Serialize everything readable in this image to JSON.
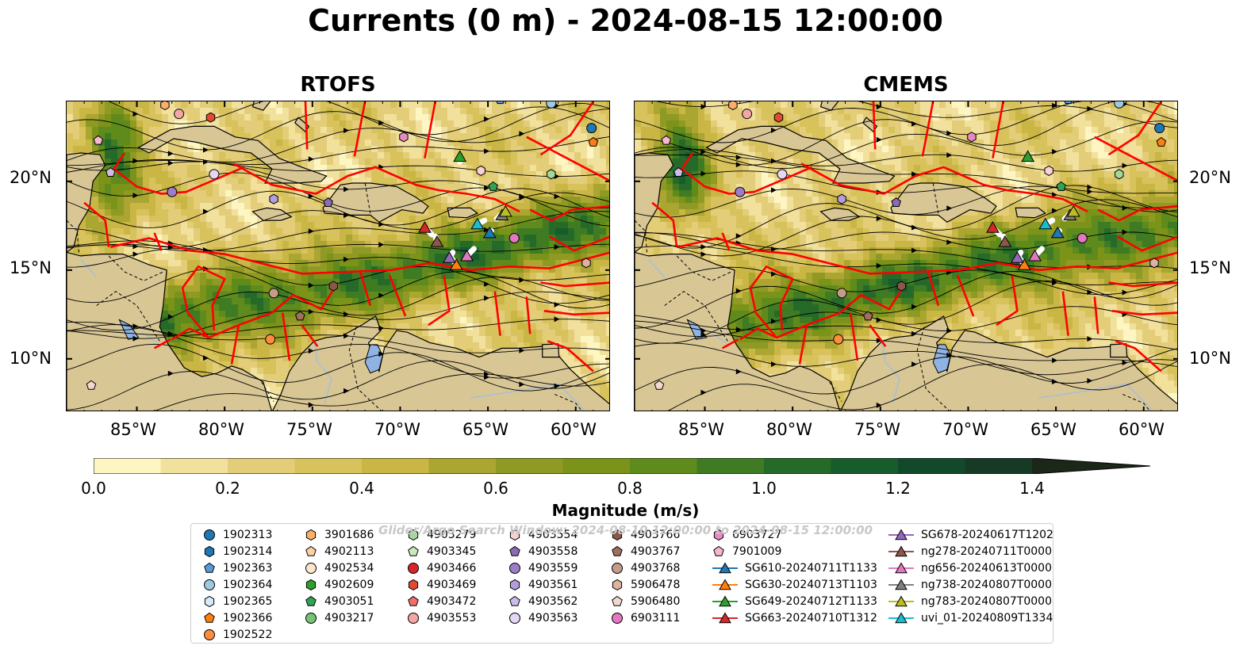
{
  "title": "Currents (0 m) - 2024-08-15 12:00:00",
  "panels": [
    {
      "title": "RTOFS"
    },
    {
      "title": "CMEMS"
    }
  ],
  "map": {
    "lon_ticks": [
      "85°W",
      "80°W",
      "75°W",
      "70°W",
      "65°W",
      "60°W"
    ],
    "lat_ticks": [
      "20°N",
      "15°N",
      "10°N"
    ],
    "lon_range": [
      -89,
      -58
    ],
    "lat_range": [
      7,
      24.5
    ]
  },
  "colorbar": {
    "label": "Magnitude (m/s)",
    "ticks": [
      "0.0",
      "0.2",
      "0.4",
      "0.6",
      "0.8",
      "1.0",
      "1.2",
      "1.4"
    ],
    "range": [
      0,
      1.5
    ],
    "colors": [
      "#fdf6c3",
      "#f1e19c",
      "#e3cd78",
      "#d8c25c",
      "#c9b645",
      "#aaa631",
      "#8f9a24",
      "#7b9319",
      "#5f8b1d",
      "#3f7b23",
      "#256a29",
      "#175c2b",
      "#13492b",
      "#163a26",
      "#17301f",
      "#1b2718"
    ]
  },
  "watermark": "Glider/Argo Search Window: 2024-08-10 12:00:00 to 2024-08-15 12:00:00",
  "legend": {
    "columns": [
      [
        {
          "label": "1902313",
          "marker": "circle",
          "color": "#1f77b4"
        },
        {
          "label": "1902314",
          "marker": "hexagon",
          "color": "#1f77b4"
        },
        {
          "label": "1902363",
          "marker": "pentagon",
          "color": "#5b9bd5"
        },
        {
          "label": "1902364",
          "marker": "circle",
          "color": "#9ecae1"
        },
        {
          "label": "1902365",
          "marker": "hexagon",
          "color": "#d6ecfa"
        },
        {
          "label": "1902366",
          "marker": "pentagon",
          "color": "#ff7f0e"
        },
        {
          "label": "1902522",
          "marker": "circle",
          "color": "#fd8d3c"
        }
      ],
      [
        {
          "label": "3901686",
          "marker": "hexagon",
          "color": "#fdae6b"
        },
        {
          "label": "4902113",
          "marker": "pentagon",
          "color": "#fdd0a2"
        },
        {
          "label": "4902534",
          "marker": "circle",
          "color": "#fee6ce"
        },
        {
          "label": "4902609",
          "marker": "hexagon",
          "color": "#2ca02c"
        },
        {
          "label": "4903051",
          "marker": "pentagon",
          "color": "#31a354"
        },
        {
          "label": "4903217",
          "marker": "circle",
          "color": "#74c476"
        }
      ],
      [
        {
          "label": "4903279",
          "marker": "hexagon",
          "color": "#a1d99b"
        },
        {
          "label": "4903345",
          "marker": "pentagon",
          "color": "#c7e9c0"
        },
        {
          "label": "4903466",
          "marker": "circle",
          "color": "#d62728"
        },
        {
          "label": "4903469",
          "marker": "hexagon",
          "color": "#e34a33"
        },
        {
          "label": "4903472",
          "marker": "pentagon",
          "color": "#f46d6d"
        },
        {
          "label": "4903553",
          "marker": "circle",
          "color": "#f4a6a6"
        }
      ],
      [
        {
          "label": "4903554",
          "marker": "hexagon",
          "color": "#fbd0d0"
        },
        {
          "label": "4903558",
          "marker": "pentagon",
          "color": "#8c6bb1"
        },
        {
          "label": "4903559",
          "marker": "circle",
          "color": "#9e7cc9"
        },
        {
          "label": "4903561",
          "marker": "hexagon",
          "color": "#b39ddb"
        },
        {
          "label": "4903562",
          "marker": "pentagon",
          "color": "#cdbbe8"
        },
        {
          "label": "4903563",
          "marker": "circle",
          "color": "#e3d7f5"
        }
      ],
      [
        {
          "label": "4903766",
          "marker": "hexagon",
          "color": "#8c564b"
        },
        {
          "label": "4903767",
          "marker": "pentagon",
          "color": "#a0705f"
        },
        {
          "label": "4903768",
          "marker": "circle",
          "color": "#c49c8a"
        },
        {
          "label": "5906478",
          "marker": "hexagon",
          "color": "#dbb3a0"
        },
        {
          "label": "5906480",
          "marker": "pentagon",
          "color": "#f2d9cc"
        },
        {
          "label": "6903111",
          "marker": "circle",
          "color": "#e377c2"
        }
      ],
      [
        {
          "label": "6903727",
          "marker": "hexagon",
          "color": "#e78ac3"
        },
        {
          "label": "7901009",
          "marker": "pentagon",
          "color": "#f7b6d2"
        },
        {
          "label": "SG610-20240711T1133",
          "marker": "triangle",
          "color": "#1f77b4"
        },
        {
          "label": "SG630-20240713T1103",
          "marker": "triangle",
          "color": "#ff7f0e"
        },
        {
          "label": "SG649-20240712T1133",
          "marker": "triangle",
          "color": "#2ca02c"
        },
        {
          "label": "SG663-20240710T1312",
          "marker": "triangle",
          "color": "#d62728"
        }
      ],
      [
        {
          "label": "SG678-20240617T1202",
          "marker": "triangle",
          "color": "#9467bd"
        },
        {
          "label": "ng278-20240711T0000",
          "marker": "triangle",
          "color": "#8c564b"
        },
        {
          "label": "ng656-20240613T0000",
          "marker": "triangle",
          "color": "#e377c2"
        },
        {
          "label": "ng738-20240807T0000",
          "marker": "triangle",
          "color": "#7f7f7f"
        },
        {
          "label": "ng783-20240807T0000",
          "marker": "triangle",
          "color": "#bcbd22"
        },
        {
          "label": "uvi_01-20240809T1334",
          "marker": "triangle",
          "color": "#17becf"
        }
      ]
    ]
  },
  "map_features": {
    "colors": {
      "land": "#d8c695",
      "lake": "#8fb4e3",
      "eez": "#ff0000",
      "stream": "#000000",
      "river": "#a7bfd9"
    },
    "floats": [
      {
        "label": "1902313",
        "marker": "circle",
        "color": "#1f77b4",
        "lon": -59.1,
        "lat": 23.0
      },
      {
        "label": "1902363",
        "marker": "pentagon",
        "color": "#5b9bd5",
        "lon": -64.3,
        "lat": 24.6
      },
      {
        "label": "1902364",
        "marker": "circle",
        "color": "#9ecae1",
        "lon": -61.4,
        "lat": 24.4
      },
      {
        "label": "1902366",
        "marker": "pentagon",
        "color": "#ff7f0e",
        "lon": -59.0,
        "lat": 22.2
      },
      {
        "label": "1902522",
        "marker": "circle",
        "color": "#fd8d3c",
        "lon": -77.4,
        "lat": 11.1
      },
      {
        "label": "3901686",
        "marker": "hexagon",
        "color": "#fdae6b",
        "lon": -83.4,
        "lat": 24.3
      },
      {
        "label": "4903051",
        "marker": "pentagon",
        "color": "#31a354",
        "lon": -64.7,
        "lat": 19.7
      },
      {
        "label": "4903279",
        "marker": "hexagon",
        "color": "#a1d99b",
        "lon": -61.4,
        "lat": 20.4
      },
      {
        "label": "4903469",
        "marker": "hexagon",
        "color": "#e34a33",
        "lon": -80.8,
        "lat": 23.6
      },
      {
        "label": "4903553",
        "marker": "circle",
        "color": "#f4a6a6",
        "lon": -82.6,
        "lat": 23.8
      },
      {
        "label": "4903554",
        "marker": "hexagon",
        "color": "#fbd0d0",
        "lon": -65.4,
        "lat": 20.6
      },
      {
        "label": "4903558",
        "marker": "pentagon",
        "color": "#8c6bb1",
        "lon": -74.1,
        "lat": 18.8
      },
      {
        "label": "4903559",
        "marker": "circle",
        "color": "#9e7cc9",
        "lon": -83.0,
        "lat": 19.4
      },
      {
        "label": "4903561",
        "marker": "hexagon",
        "color": "#b39ddb",
        "lon": -77.2,
        "lat": 19.0
      },
      {
        "label": "4903562",
        "marker": "pentagon",
        "color": "#cdbbe8",
        "lon": -86.5,
        "lat": 20.5
      },
      {
        "label": "4903563",
        "marker": "circle",
        "color": "#e3d7f5",
        "lon": -80.6,
        "lat": 20.4
      },
      {
        "label": "4903766",
        "marker": "hexagon",
        "color": "#8c564b",
        "lon": -73.8,
        "lat": 14.1
      },
      {
        "label": "4903767",
        "marker": "pentagon",
        "color": "#a0705f",
        "lon": -75.7,
        "lat": 12.4
      },
      {
        "label": "4903768",
        "marker": "circle",
        "color": "#c49c8a",
        "lon": -77.2,
        "lat": 13.7
      },
      {
        "label": "5906478",
        "marker": "hexagon",
        "color": "#dbb3a0",
        "lon": -59.4,
        "lat": 15.4
      },
      {
        "label": "5906480",
        "marker": "pentagon",
        "color": "#f2d9cc",
        "lon": -87.6,
        "lat": 8.5
      },
      {
        "label": "6903111",
        "marker": "circle",
        "color": "#e377c2",
        "lon": -63.5,
        "lat": 16.8
      },
      {
        "label": "6903727",
        "marker": "hexagon",
        "color": "#e78ac3",
        "lon": -69.8,
        "lat": 22.5
      },
      {
        "label": "7901009",
        "marker": "pentagon",
        "color": "#f7b6d2",
        "lon": -87.2,
        "lat": 22.3
      }
    ],
    "gliders": [
      {
        "label": "SG610-20240711T1133",
        "color": "#1f77b4",
        "lon": -64.9,
        "lat": 17.1,
        "track": [
          [
            -64.8,
            17.2
          ],
          [
            -64.9,
            17.1
          ]
        ]
      },
      {
        "label": "SG630-20240713T1103",
        "color": "#ff7f0e",
        "lon": -66.8,
        "lat": 15.3,
        "track": [
          [
            -67.1,
            15.7
          ],
          [
            -66.8,
            15.3
          ]
        ]
      },
      {
        "label": "SG649-20240712T1133",
        "color": "#2ca02c",
        "lon": -66.6,
        "lat": 21.4,
        "track": [
          [
            -66.6,
            21.1
          ],
          [
            -66.6,
            21.4
          ]
        ]
      },
      {
        "label": "SG663-20240710T1312",
        "color": "#d62728",
        "lon": -68.6,
        "lat": 17.4,
        "track": [
          [
            -68.2,
            17.0
          ],
          [
            -68.6,
            17.4
          ]
        ]
      },
      {
        "label": "SG678-20240617T1202",
        "color": "#9467bd",
        "lon": -67.2,
        "lat": 15.7,
        "track": [
          [
            -67.0,
            16.0
          ],
          [
            -67.2,
            15.7
          ]
        ]
      },
      {
        "label": "ng278-20240711T0000",
        "color": "#8c564b",
        "lon": -67.9,
        "lat": 16.6,
        "track": [
          [
            -68.0,
            16.9
          ],
          [
            -67.9,
            16.6
          ]
        ]
      },
      {
        "label": "ng656-20240613T0000",
        "color": "#e377c2",
        "lon": -66.2,
        "lat": 15.8,
        "track": [
          [
            -65.8,
            16.2
          ],
          [
            -66.2,
            15.8
          ]
        ]
      },
      {
        "label": "ng738-20240807T0000",
        "color": "#7f7f7f",
        "lon": -64.2,
        "lat": 18.1,
        "track": [
          [
            -64.5,
            17.9
          ],
          [
            -64.2,
            18.1
          ]
        ]
      },
      {
        "label": "ng783-20240807T0000",
        "color": "#bcbd22",
        "lon": -64.0,
        "lat": 18.3,
        "track": [
          [
            -64.3,
            18.1
          ],
          [
            -64.0,
            18.3
          ]
        ]
      },
      {
        "label": "uvi_01-20240809T1334",
        "color": "#17becf",
        "lon": -65.6,
        "lat": 17.6,
        "track": [
          [
            -65.2,
            17.8
          ],
          [
            -65.6,
            17.6
          ]
        ]
      }
    ]
  }
}
